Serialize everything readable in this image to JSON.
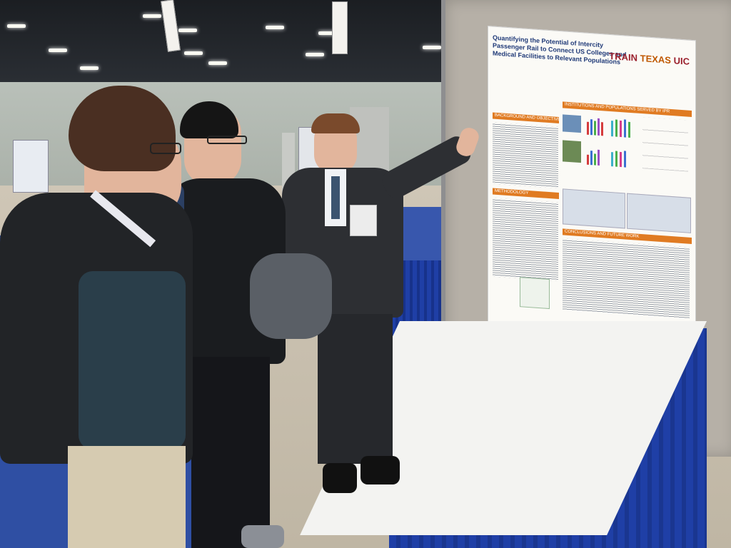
{
  "scene": {
    "description_elements": [
      "ceiling-lights",
      "back-wall",
      "floor",
      "carpet",
      "poster-board",
      "poster",
      "table",
      "presenter",
      "attendee-left",
      "attendee-middle"
    ]
  },
  "signs": {
    "sign_a": "",
    "sign_b": "",
    "sign_c": ""
  },
  "poster": {
    "title": "Quantifying the Potential of Intercity Passenger Rail to Connect US Colleges and Medical Facilities to Relevant Populations",
    "logo_train": "TRAIN",
    "logo_texas": "TEXAS",
    "logo_uic": "UIC",
    "section_background": "BACKGROUND AND OBJECTIVE",
    "section_institutions": "INSTITUTIONS AND POPULATIONS SERVED BY IPR",
    "section_methodology": "METHODOLOGY",
    "section_conclusions": "CONCLUSIONS AND FUTURE WORK"
  },
  "colors": {
    "poster_accent": "#e07b22",
    "poster_title": "#203a78",
    "tablecloth": "#1f3fa6"
  }
}
